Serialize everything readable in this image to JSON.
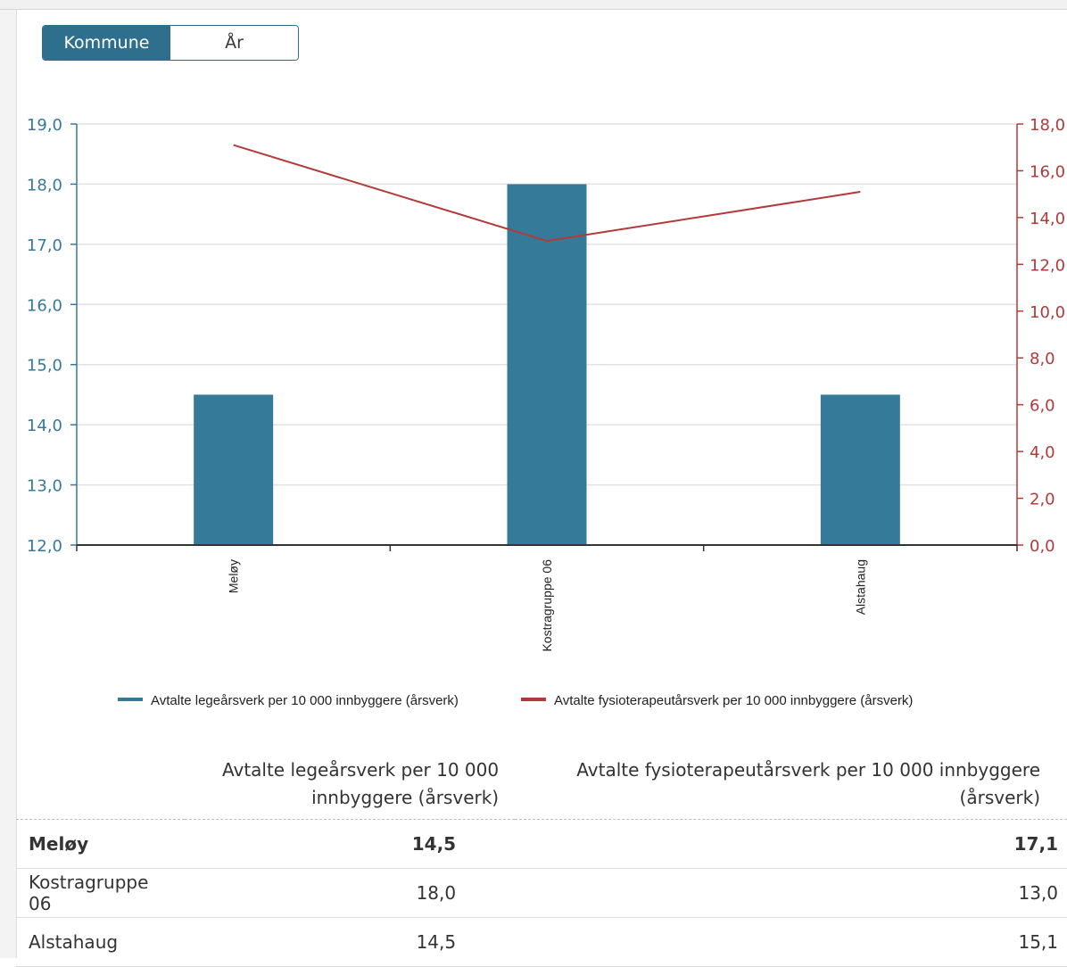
{
  "toggle": {
    "options": [
      "Kommune",
      "År"
    ],
    "selected": "Kommune"
  },
  "chart_data": {
    "type": "bar",
    "categories": [
      "Meløy",
      "Kostragruppe 06",
      "Alstahaug"
    ],
    "series": [
      {
        "name": "Avtalte legeårsverk per 10 000 innbyggere (årsverk)",
        "type": "bar",
        "axis": "left",
        "color": "#357a99",
        "values": [
          14.5,
          18.0,
          14.5
        ]
      },
      {
        "name": "Avtalte fysioterapeutårsverk per 10 000 innbyggere (årsverk)",
        "type": "line",
        "axis": "right",
        "color": "#b33a3a",
        "values": [
          17.1,
          13.0,
          15.1
        ]
      }
    ],
    "y_left": {
      "range": [
        12,
        19
      ],
      "ticks": [
        "12,0",
        "13,0",
        "14,0",
        "15,0",
        "16,0",
        "17,0",
        "18,0",
        "19,0"
      ],
      "color": "#357a99"
    },
    "y_right": {
      "range": [
        0,
        18
      ],
      "ticks": [
        "0,0",
        "2,0",
        "4,0",
        "6,0",
        "8,0",
        "10,0",
        "12,0",
        "14,0",
        "16,0",
        "18,0"
      ],
      "color": "#b33a3a"
    },
    "grid": true,
    "legend_position": "bottom"
  },
  "table": {
    "headers": [
      "",
      "Avtalte legeårsverk per 10 000 innbyggere (årsverk)",
      "Avtalte fysioterapeutårsverk per 10 000 innbyggere (årsverk)"
    ],
    "rows": [
      {
        "name": "Meløy",
        "v1": "14,5",
        "v2": "17,1",
        "bold": true
      },
      {
        "name": "Kostragruppe 06",
        "v1": "18,0",
        "v2": "13,0",
        "bold": false
      },
      {
        "name": "Alstahaug",
        "v1": "14,5",
        "v2": "15,1",
        "bold": false
      }
    ]
  }
}
